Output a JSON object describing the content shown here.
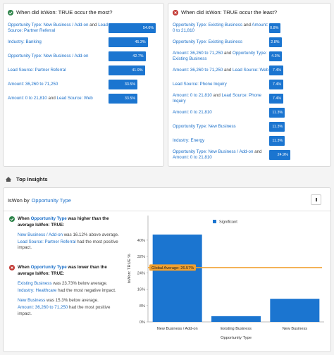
{
  "connector": "and",
  "most": {
    "title": "When did IsWon: TRUE occur the most?",
    "rows": [
      {
        "conditions": [
          "Opportunity Type: New Business / Add-on",
          "Lead Source: Partner Referral"
        ],
        "value": 54.6,
        "value_label": "54.6%"
      },
      {
        "conditions": [
          "Industry: Banking"
        ],
        "value": 45.3,
        "value_label": "45.3%"
      },
      {
        "conditions": [
          "Opportunity Type: New Business / Add-on"
        ],
        "value": 42.7,
        "value_label": "42.7%"
      },
      {
        "conditions": [
          "Lead Source: Partner Referral"
        ],
        "value": 41.9,
        "value_label": "41.9%"
      },
      {
        "conditions": [
          "Amount: 36,260 to 71,250"
        ],
        "value": 33.5,
        "value_label": "33.5%"
      },
      {
        "conditions": [
          "Amount: 0 to 21,810",
          "Lead Source: Web"
        ],
        "value": 33.5,
        "value_label": "33.5%"
      }
    ]
  },
  "least": {
    "title": "When did IsWon: TRUE occur the least?",
    "rows": [
      {
        "conditions": [
          "Opportunity Type: Existing Business",
          "Amount: 0 to 21,810"
        ],
        "value": 0.8,
        "value_label": "0.8%"
      },
      {
        "conditions": [
          "Opportunity Type: Existing Business"
        ],
        "value": 2.8,
        "value_label": "2.8%"
      },
      {
        "conditions": [
          "Amount: 36,260 to 71,250",
          "Opportunity Type: Existing Business"
        ],
        "value": 4.3,
        "value_label": "4.3%"
      },
      {
        "conditions": [
          "Amount: 36,260 to 71,250",
          "Lead Source: Web"
        ],
        "value": 7.4,
        "value_label": "7.4%"
      },
      {
        "conditions": [
          "Lead Source: Phone Inquiry"
        ],
        "value": 7.4,
        "value_label": "7.4%"
      },
      {
        "conditions": [
          "Amount: 0 to 21,810",
          "Lead Source: Phone Inquiry"
        ],
        "value": 7.4,
        "value_label": "7.4%"
      },
      {
        "conditions": [
          "Amount: 0 to 21,810"
        ],
        "value": 11.3,
        "value_label": "11.3%"
      },
      {
        "conditions": [
          "Opportunity Type: New Business"
        ],
        "value": 11.3,
        "value_label": "11.3%"
      },
      {
        "conditions": [
          "Industry: Energy"
        ],
        "value": 11.3,
        "value_label": "11.3%"
      },
      {
        "conditions": [
          "Opportunity Type: New Business / Add-on",
          "Amount: 0 to 21,810"
        ],
        "value": 24.9,
        "value_label": "24.9%"
      }
    ]
  },
  "insights_heading": "Top Insights",
  "card": {
    "title_prefix": "IsWon by",
    "title_field": "Opportunity Type",
    "blocks": [
      {
        "lead": {
          "before": "When",
          "field": "Opportunity Type",
          "after": "was higher than the average IsWon: TRUE:"
        },
        "items": [
          {
            "link": "New Business / Add-on",
            "text": "was 16.12% above average."
          },
          {
            "link": "Lead Source: Partner Referral",
            "text": "had the most positive impact."
          }
        ]
      },
      {
        "lead": {
          "before": "When",
          "field": "Opportunity Type",
          "after": "was lower than the average IsWon: TRUE:"
        },
        "items": [
          {
            "link": "Existing Business",
            "text": "was 23.73% below average."
          },
          {
            "link": "Industry: Healthcare",
            "text": "had the most negative impact."
          },
          {
            "link": "New Business",
            "text": "was 15.3% below average."
          },
          {
            "link": "Amount: 36,260 to 71,250",
            "text": "had the most positive impact."
          }
        ]
      }
    ]
  },
  "chart_data": {
    "type": "bar",
    "y_label": "IsWon: TRUE %",
    "x_label": "Opportunity Type",
    "categories": [
      "New Business / Add-on",
      "Existing Business",
      "New Business"
    ],
    "series": [
      {
        "name": "Significant",
        "color": "#1b75d0",
        "values": [
          42.7,
          2.8,
          11.3
        ]
      }
    ],
    "ylim": [
      0,
      52
    ],
    "yticks": [
      {
        "value": 0,
        "label": "0%"
      },
      {
        "value": 8,
        "label": "8%"
      },
      {
        "value": 16,
        "label": "16%"
      },
      {
        "value": 24,
        "label": "24%"
      },
      {
        "value": 32,
        "label": "32%"
      },
      {
        "value": 40,
        "label": "40%"
      }
    ],
    "reference_line": {
      "value": 26.57,
      "label": "Global Average: 26.57%",
      "color": "#f0a030"
    }
  }
}
